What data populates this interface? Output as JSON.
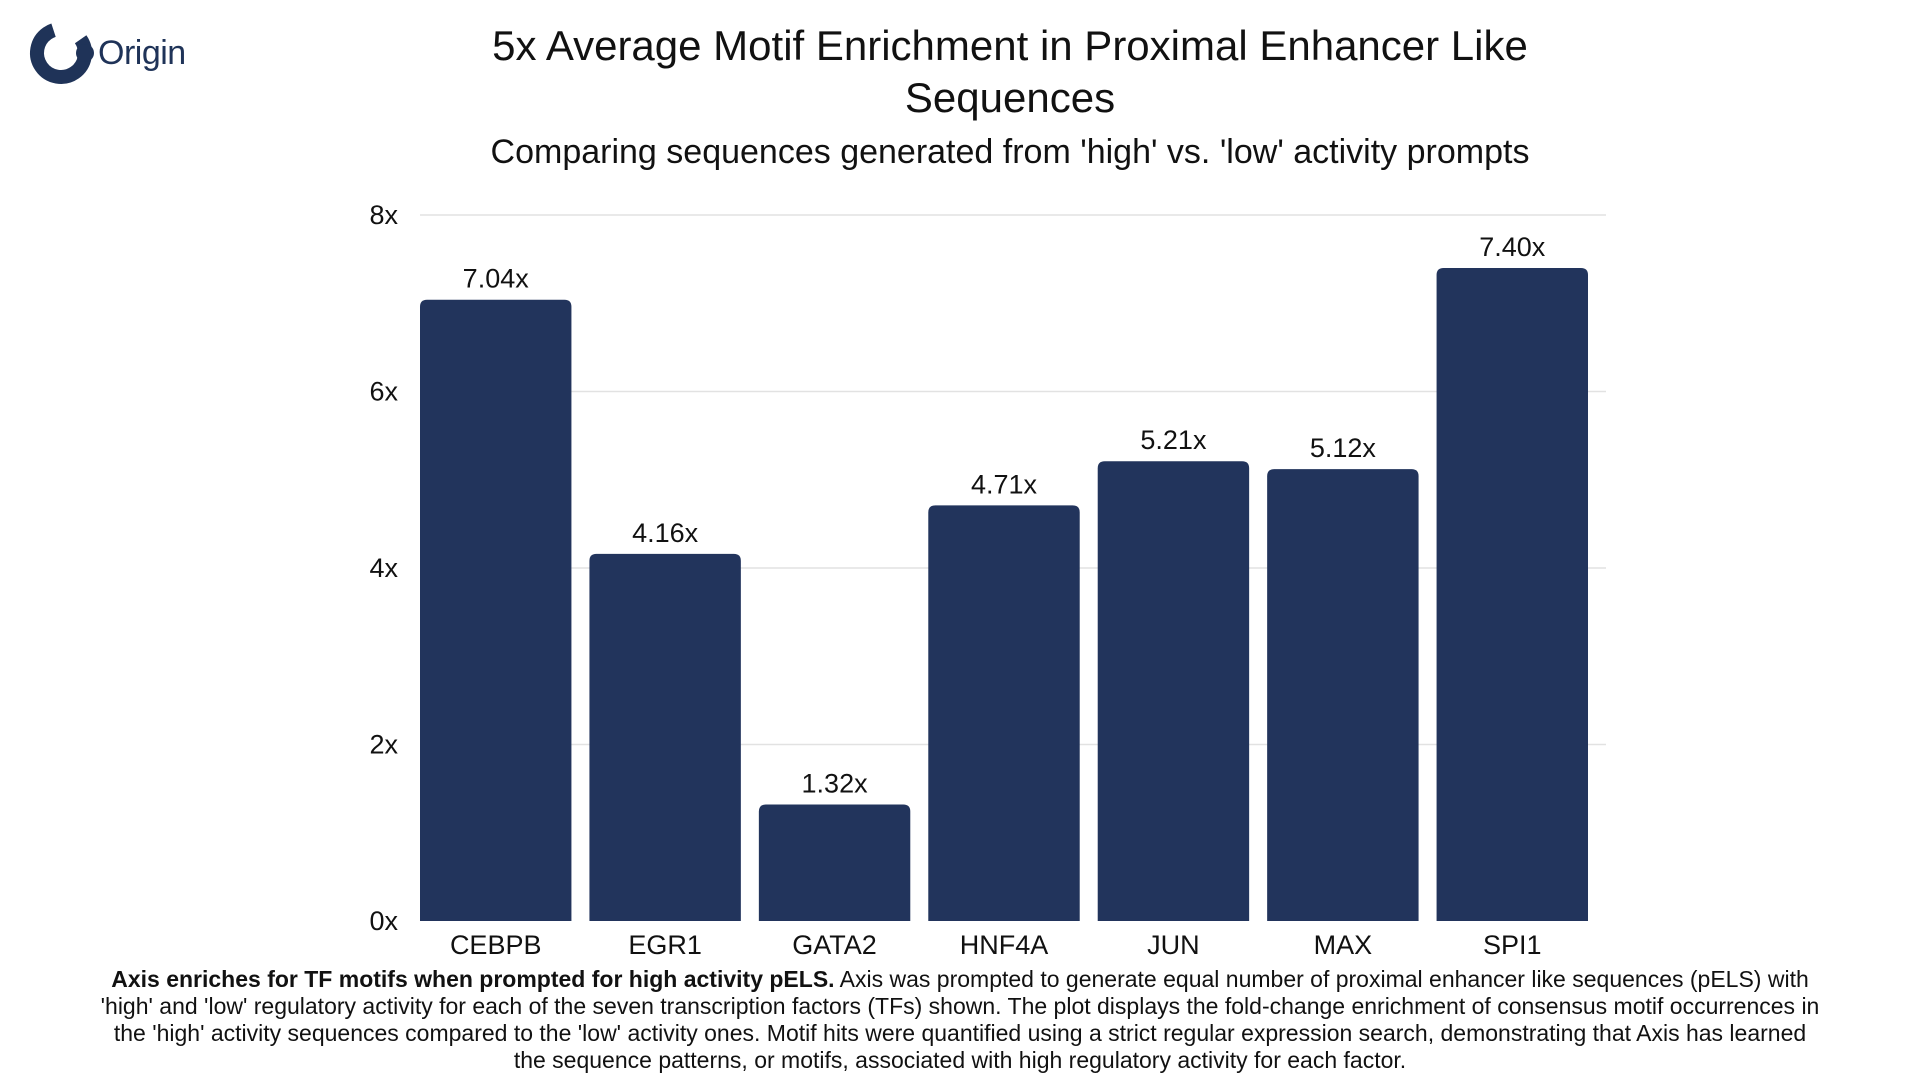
{
  "brand": {
    "logo_text": "Origin",
    "logo_icon": "origin-ring-icon",
    "color": "#1f3358"
  },
  "chart_data": {
    "type": "bar",
    "title": "5x Average Motif Enrichment in Proximal Enhancer Like Sequences",
    "subtitle": "Comparing sequences generated from 'high' vs. 'low' activity prompts",
    "categories": [
      "CEBPB",
      "EGR1",
      "GATA2",
      "HNF4A",
      "JUN",
      "MAX",
      "SPI1"
    ],
    "values": [
      7.04,
      4.16,
      1.32,
      4.71,
      5.21,
      5.12,
      7.4
    ],
    "data_labels": [
      "7.04x",
      "4.16x",
      "1.32x",
      "4.71x",
      "5.21x",
      "5.12x",
      "7.40x"
    ],
    "yticks": [
      0,
      2,
      4,
      6,
      8
    ],
    "ytick_labels": [
      "0x",
      "2x",
      "4x",
      "6x",
      "8x"
    ],
    "ylim": [
      0,
      8
    ],
    "xlabel": "",
    "ylabel": "",
    "grid": true,
    "bar_color": "#22345c",
    "grid_color": "#e2e2e2"
  },
  "caption": {
    "bold": "Axis enriches for TF motifs when prompted for high activity pELS.",
    "text": " Axis was prompted to generate equal number of proximal enhancer like sequences (pELS) with 'high' and 'low' regulatory activity for each of the seven transcription factors (TFs) shown. The plot displays the fold-change enrichment of consensus motif occurrences in the 'high' activity sequences compared to the 'low' activity ones. Motif hits were quantified using a strict regular expression search, demonstrating that Axis has learned the sequence patterns, or motifs, associated with high regulatory activity for each factor."
  }
}
